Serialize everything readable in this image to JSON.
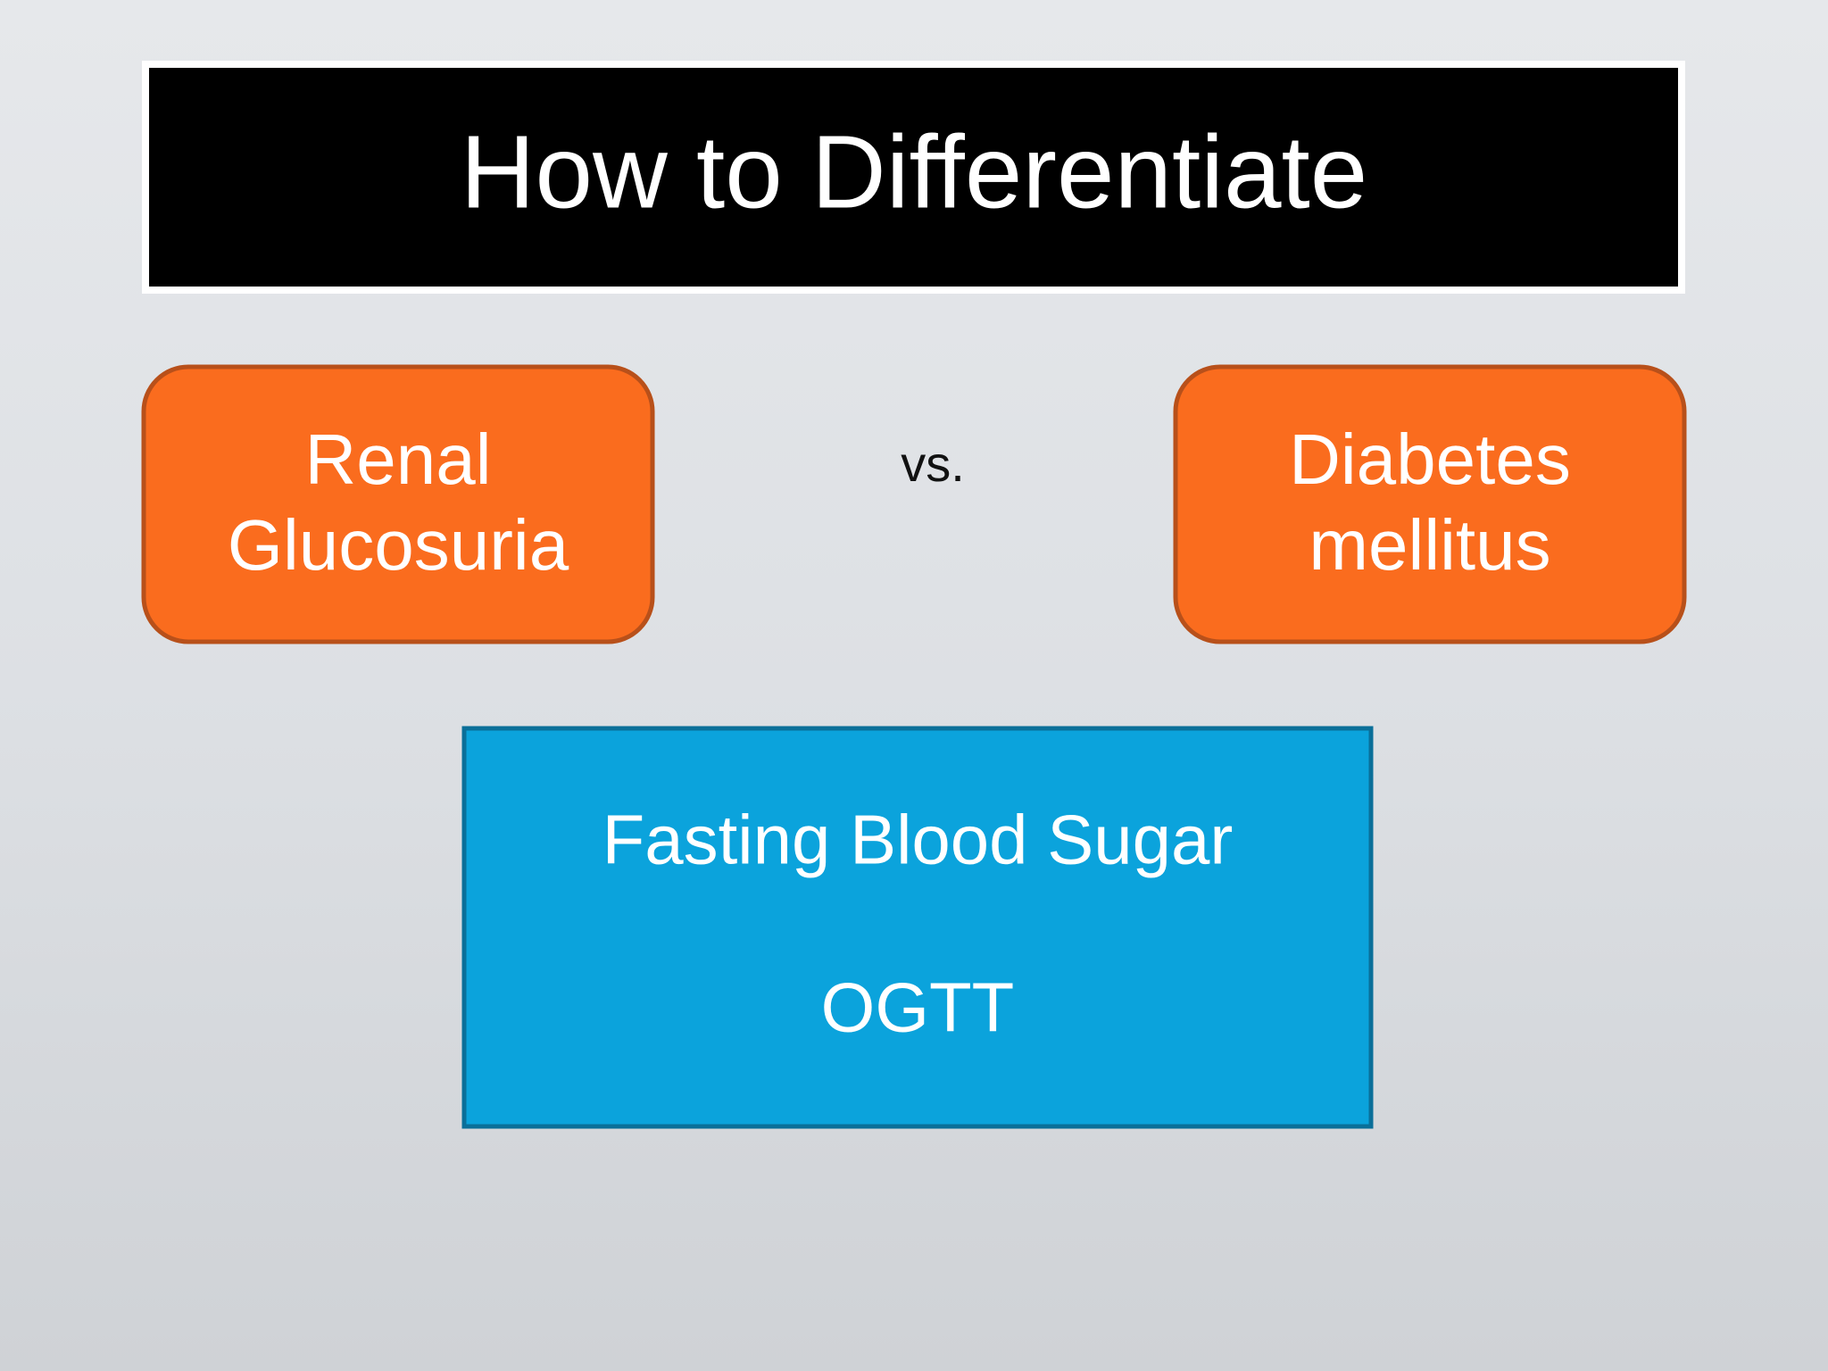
{
  "title": "How to Differentiate",
  "left_box": {
    "lines": [
      "Renal",
      "Glucosuria"
    ]
  },
  "separator": "vs.",
  "right_box": {
    "lines": [
      "Diabetes",
      "mellitus"
    ]
  },
  "center_box": {
    "lines": [
      "Fasting Blood Sugar",
      "OGTT"
    ]
  }
}
